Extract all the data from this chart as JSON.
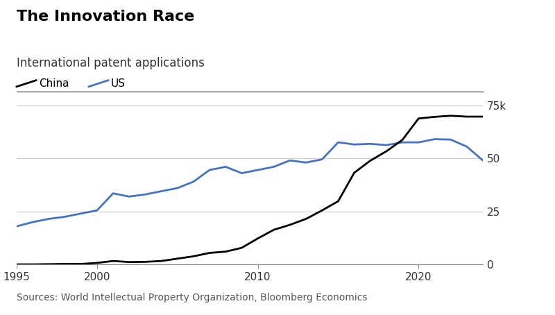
{
  "title": "The Innovation Race",
  "subtitle": "International patent applications",
  "source": "Sources: World Intellectual Property Organization, Bloomberg Economics",
  "legend_china": "China",
  "legend_us": "US",
  "china_color": "#000000",
  "us_color": "#4472C4",
  "background_color": "#ffffff",
  "years": [
    1995,
    1996,
    1997,
    1998,
    1999,
    2000,
    2001,
    2002,
    2003,
    2004,
    2005,
    2006,
    2007,
    2008,
    2009,
    2010,
    2011,
    2012,
    2013,
    2014,
    2015,
    2016,
    2017,
    2018,
    2019,
    2020,
    2021,
    2022,
    2023,
    2024
  ],
  "china_values": [
    0.1,
    0.1,
    0.2,
    0.3,
    0.3,
    0.8,
    1.7,
    1.2,
    1.3,
    1.7,
    2.8,
    3.9,
    5.5,
    6.1,
    7.9,
    12.3,
    16.4,
    18.7,
    21.5,
    25.5,
    29.8,
    43.2,
    48.9,
    53.3,
    58.7,
    68.7,
    69.5,
    70.0,
    69.6,
    69.6
  ],
  "us_values": [
    18.0,
    20.0,
    21.5,
    22.5,
    24.0,
    25.5,
    33.5,
    32.0,
    33.0,
    34.5,
    36.0,
    39.0,
    44.5,
    46.0,
    43.0,
    44.5,
    46.0,
    49.0,
    48.0,
    49.5,
    57.5,
    56.5,
    56.8,
    56.2,
    57.5,
    57.5,
    59.0,
    58.8,
    55.5,
    49.0
  ],
  "ylim": [
    0,
    80
  ],
  "yticks": [
    0,
    25,
    50,
    75
  ],
  "ytick_labels": [
    "0",
    "25",
    "50",
    "75k"
  ],
  "xlim": [
    1995,
    2024
  ],
  "xticks": [
    1995,
    2000,
    2010,
    2020
  ],
  "title_fontsize": 16,
  "subtitle_fontsize": 12,
  "legend_fontsize": 11,
  "axis_fontsize": 11,
  "source_fontsize": 10,
  "line_width": 2.0,
  "grid_color": "#cccccc",
  "spine_color": "#888888",
  "tick_label_color": "#333333"
}
